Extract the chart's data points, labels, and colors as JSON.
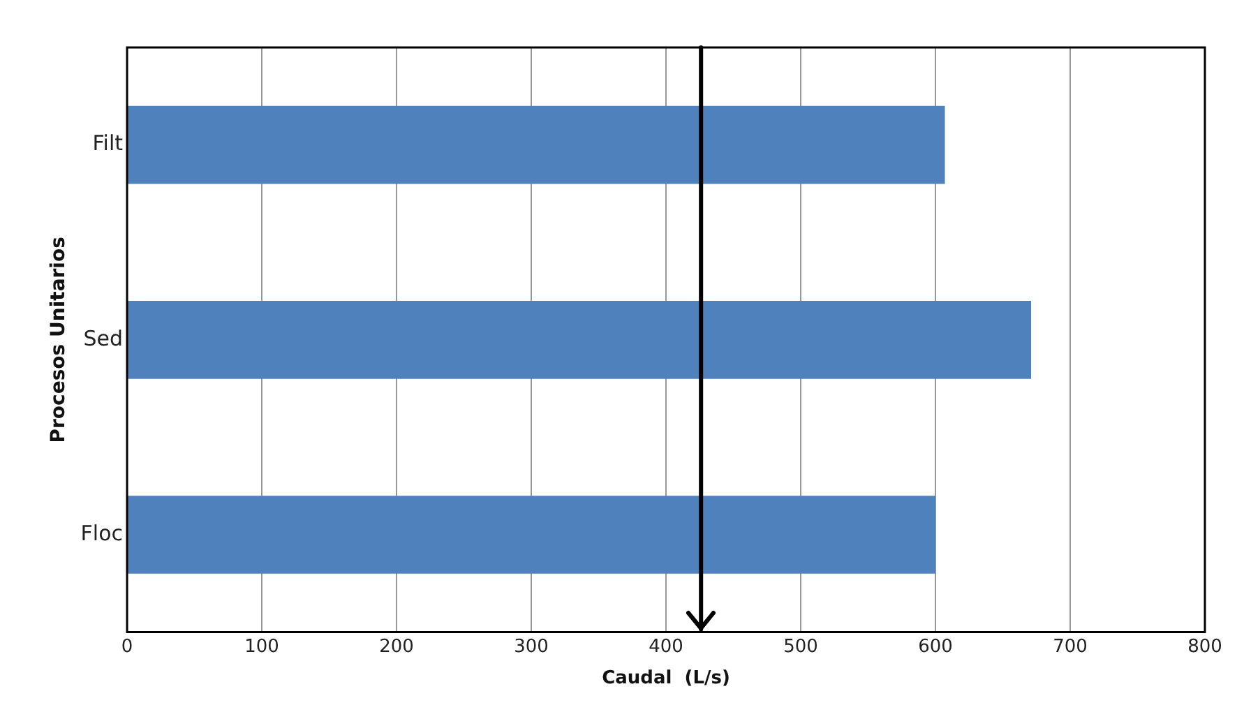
{
  "chart_data": {
    "type": "bar",
    "orientation": "horizontal",
    "categories": [
      "Filt",
      "Sed",
      "Floc"
    ],
    "values": [
      607,
      671,
      600
    ],
    "color": "#4f81bd",
    "xlim": [
      0,
      800
    ],
    "xticks": [
      0,
      100,
      200,
      300,
      400,
      500,
      600,
      700,
      800
    ],
    "xlabel": "Caudal  (L/s)",
    "ylabel": "Procesos Unitarios",
    "grid": "x",
    "legend": false,
    "ref_lines": [
      {
        "axis": "x",
        "value": 426,
        "color": "#000000",
        "line_style": "solid"
      }
    ]
  }
}
